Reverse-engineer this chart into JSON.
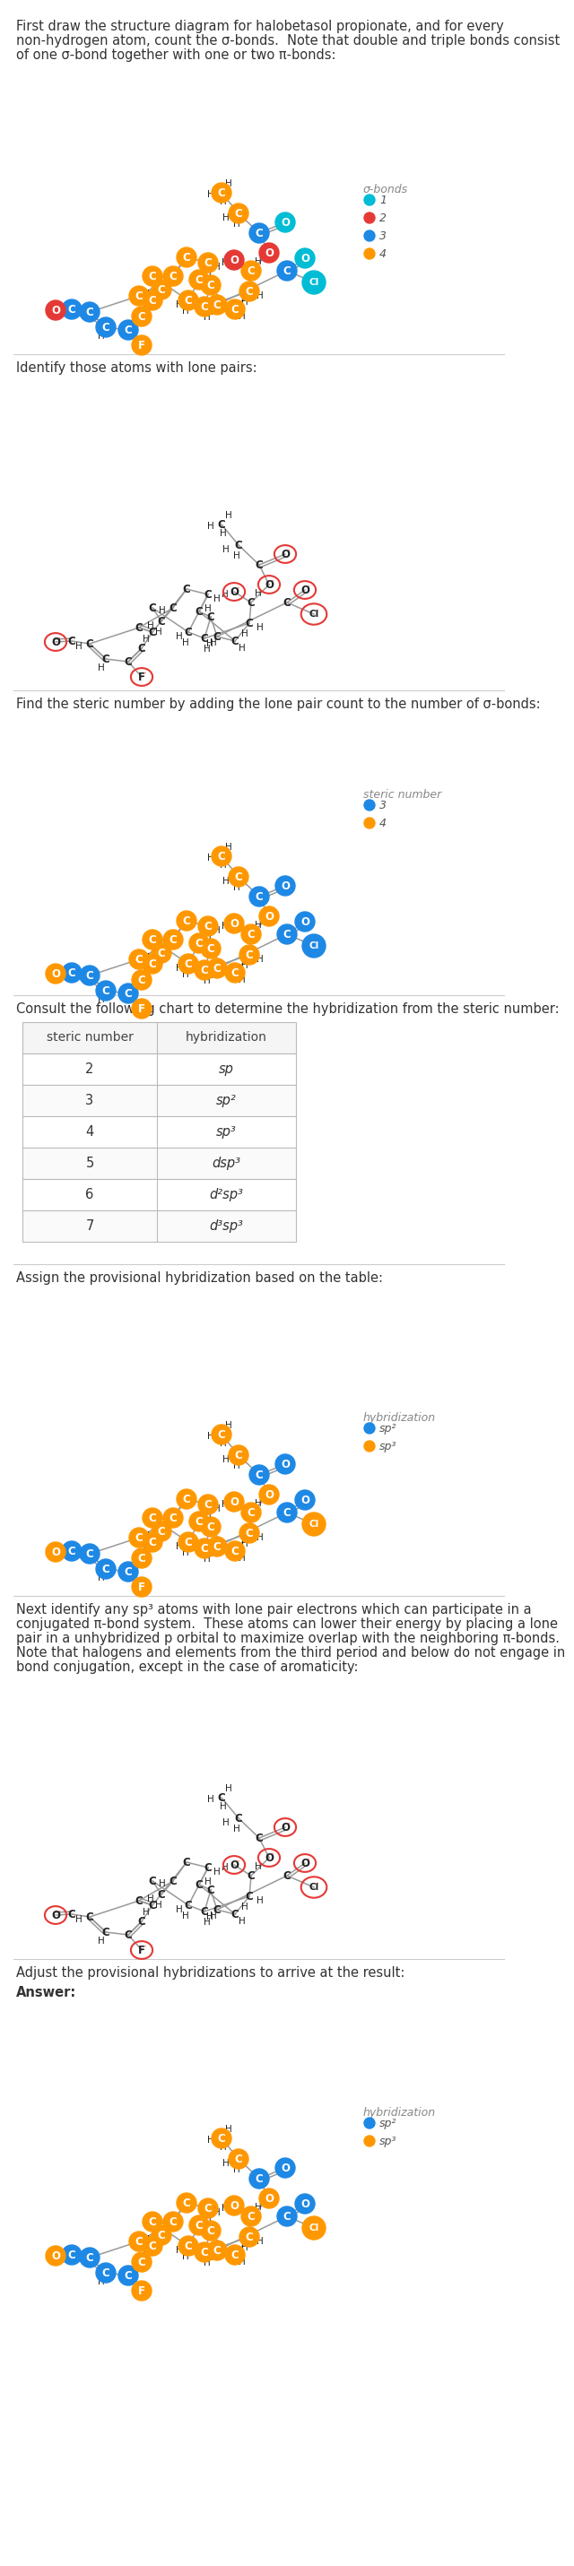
{
  "sections": [
    {
      "text": [
        "First draw the structure diagram for halobetasol propionate, and for every",
        "non-hydrogen atom, count the σ-bonds.  Note that double and triple bonds consist",
        "of one σ-bond together with one or two π-bonds:"
      ],
      "legend_title": "σ-bonds",
      "legend_items": [
        [
          "1",
          "#00BCD4"
        ],
        [
          "2",
          "#E53935"
        ],
        [
          "3",
          "#1E88E5"
        ],
        [
          "4",
          "#FF9800"
        ]
      ]
    },
    {
      "text": [
        "Identify those atoms with lone pairs:"
      ]
    },
    {
      "text": [
        "Find the steric number by adding the lone pair count to the number of σ-bonds:"
      ],
      "legend_title": "steric number",
      "legend_items": [
        [
          "3",
          "#1E88E5"
        ],
        [
          "4",
          "#FF9800"
        ]
      ]
    },
    {
      "text": [
        "Consult the following chart to determine the hybridization from the steric number:"
      ],
      "table_headers": [
        "steric number",
        "hybridization"
      ],
      "table_rows": [
        [
          "2",
          "sp"
        ],
        [
          "3",
          "sp²"
        ],
        [
          "4",
          "sp³"
        ],
        [
          "5",
          "dsp³"
        ],
        [
          "6",
          "d²sp³"
        ],
        [
          "7",
          "d³sp³"
        ]
      ]
    },
    {
      "text": [
        "Assign the provisional hybridization based on the table:"
      ],
      "legend_title": "hybridization",
      "legend_items": [
        [
          "sp²",
          "#1E88E5"
        ],
        [
          "sp³",
          "#FF9800"
        ]
      ]
    },
    {
      "text": [
        "Next identify any sp³ atoms with lone pair electrons which can participate in a",
        "conjugated π-bond system.  These atoms can lower their energy by placing a lone",
        "pair in a unhybridized p orbital to maximize overlap with the neighboring π-bonds.",
        "Note that halogens and elements from the third period and below do not engage in",
        "bond conjugation, except in the case of aromaticity:"
      ]
    },
    {
      "text": [
        "Adjust the provisional hybridizations to arrive at the result:"
      ],
      "answer_prefix": "Answer:",
      "legend_title": "hybridization",
      "legend_items": [
        [
          "sp²",
          "#1E88E5"
        ],
        [
          "sp³",
          "#FF9800"
        ]
      ]
    }
  ],
  "colors": {
    "cyan": "#00BCD4",
    "red": "#E53935",
    "blue": "#1E88E5",
    "orange": "#FF9800",
    "gray": "#888888",
    "black": "#222222",
    "lp_circle": "#E53935",
    "bg": "#FFFFFF",
    "sep_line": "#CCCCCC",
    "text": "#444444"
  }
}
